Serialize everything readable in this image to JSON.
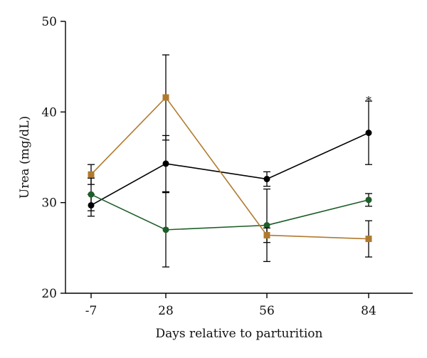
{
  "chart_data": {
    "type": "line",
    "xlabel": "Days relative to parturition",
    "ylabel": "Urea (mg/dL)",
    "x": [
      "-7",
      "28",
      "56",
      "84"
    ],
    "ylim": [
      20,
      50
    ],
    "yticks": [
      20,
      30,
      40,
      50
    ],
    "grid": false,
    "series": [
      {
        "color": "#000000",
        "marker": "circle",
        "values": [
          29.7,
          34.3,
          32.6,
          37.7
        ],
        "err": [
          1.2,
          3.1,
          0.8,
          3.5
        ]
      },
      {
        "color": "#1e5e28",
        "marker": "circle",
        "values": [
          30.9,
          27.0,
          27.5,
          30.3
        ],
        "err": [
          1.8,
          4.1,
          4.0,
          0.7
        ]
      },
      {
        "color": "#b07a2e",
        "marker": "square",
        "values": [
          33.1,
          41.6,
          26.4,
          26.0
        ],
        "err": [
          1.1,
          4.7,
          0.8,
          2.0
        ]
      }
    ],
    "annotations": [
      {
        "text": "*",
        "x": "84",
        "y": 41.6
      }
    ]
  }
}
